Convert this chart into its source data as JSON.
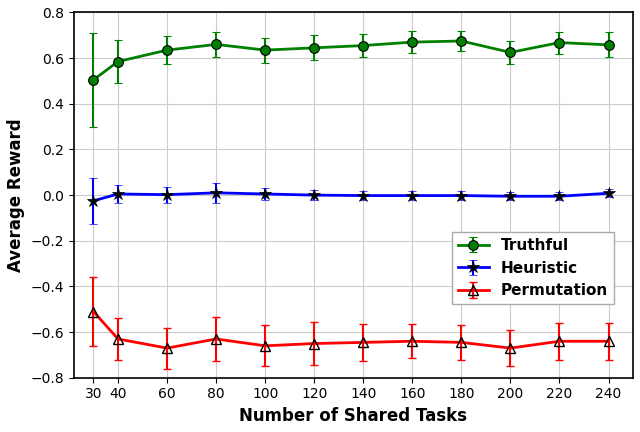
{
  "x": [
    30,
    40,
    60,
    80,
    100,
    120,
    140,
    160,
    180,
    200,
    220,
    240
  ],
  "truthful_y": [
    0.505,
    0.585,
    0.635,
    0.66,
    0.635,
    0.645,
    0.655,
    0.67,
    0.675,
    0.625,
    0.668,
    0.658
  ],
  "truthful_err": [
    0.205,
    0.095,
    0.06,
    0.055,
    0.055,
    0.055,
    0.05,
    0.048,
    0.045,
    0.05,
    0.048,
    0.055
  ],
  "heuristic_y": [
    -0.025,
    0.005,
    0.002,
    0.01,
    0.005,
    0.0,
    -0.002,
    -0.002,
    -0.002,
    -0.005,
    -0.005,
    0.008
  ],
  "heuristic_err": [
    0.1,
    0.04,
    0.035,
    0.045,
    0.028,
    0.022,
    0.018,
    0.018,
    0.018,
    0.018,
    0.018,
    0.018
  ],
  "permutation_y": [
    -0.51,
    -0.63,
    -0.67,
    -0.63,
    -0.66,
    -0.65,
    -0.645,
    -0.64,
    -0.645,
    -0.67,
    -0.64,
    -0.64
  ],
  "permutation_err": [
    0.15,
    0.09,
    0.09,
    0.095,
    0.09,
    0.095,
    0.08,
    0.075,
    0.075,
    0.08,
    0.08,
    0.08
  ],
  "xlabel": "Number of Shared Tasks",
  "ylabel": "Average Reward",
  "ylim": [
    -0.8,
    0.8
  ],
  "xlim": [
    22,
    250
  ],
  "xticks": [
    30,
    40,
    60,
    80,
    100,
    120,
    140,
    160,
    180,
    200,
    220,
    240
  ],
  "yticks": [
    -0.8,
    -0.6,
    -0.4,
    -0.2,
    0.0,
    0.2,
    0.4,
    0.6,
    0.8
  ],
  "truthful_color": "#008000",
  "heuristic_color": "#0000ff",
  "permutation_color": "#ff0000",
  "legend_labels": [
    "Truthful",
    "Heuristic",
    "Permutation"
  ],
  "legend_loc": "center right",
  "background_color": "#ffffff",
  "grid_color": "#cccccc"
}
